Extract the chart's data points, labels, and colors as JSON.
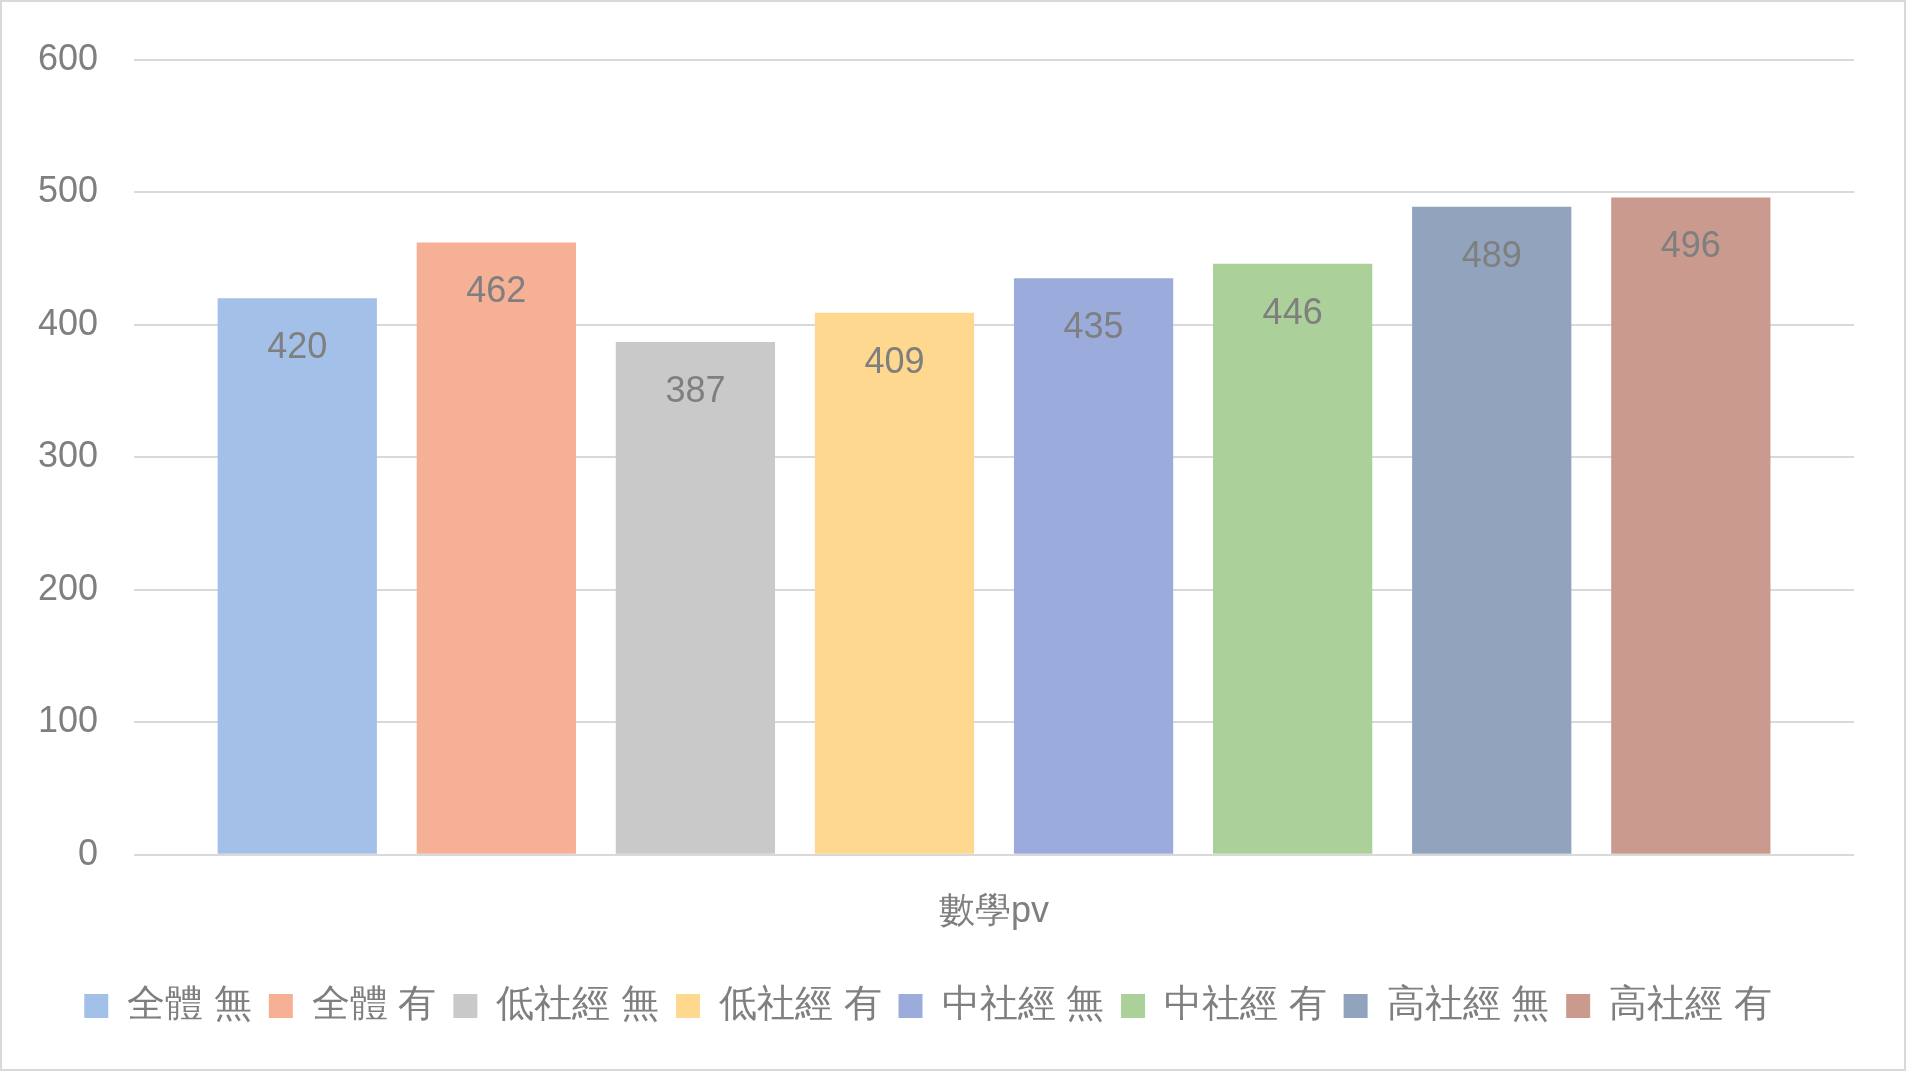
{
  "chart_data": {
    "type": "bar",
    "categories": [
      "數學pv"
    ],
    "series": [
      {
        "name": "全體 無",
        "color": "#a3c1e8",
        "values": [
          420
        ]
      },
      {
        "name": "全體 有",
        "color": "#f5b096",
        "values": [
          462
        ]
      },
      {
        "name": "低社經 無",
        "color": "#c9c9c9",
        "values": [
          387
        ]
      },
      {
        "name": "低社經 有",
        "color": "#fdd88e",
        "values": [
          409
        ]
      },
      {
        "name": "中社經 無",
        "color": "#9bacdc",
        "values": [
          435
        ]
      },
      {
        "name": "中社經 有",
        "color": "#acd09a",
        "values": [
          446
        ]
      },
      {
        "name": "高社經 無",
        "color": "#91a3bd",
        "values": [
          489
        ]
      },
      {
        "name": "高社經 有",
        "color": "#c99a8d",
        "values": [
          496
        ]
      }
    ],
    "ylim": [
      0,
      600
    ],
    "yticks": [
      0,
      100,
      200,
      300,
      400,
      500,
      600
    ],
    "grid": "y",
    "legend": "bottom",
    "data_labels": true
  }
}
